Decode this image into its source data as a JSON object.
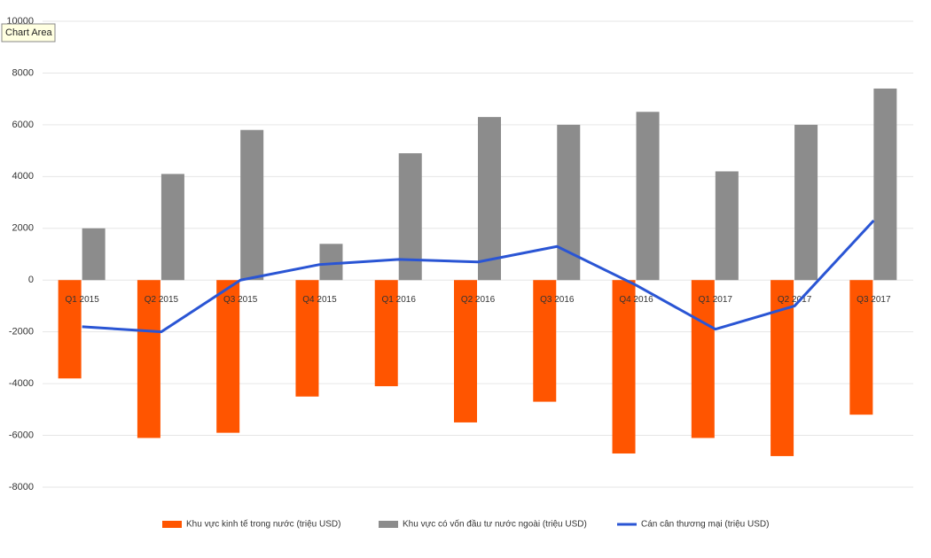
{
  "tooltip": "Chart Area",
  "chart_data": {
    "type": "bar",
    "categories": [
      "Q1 2015",
      "Q2 2015",
      "Q3 2015",
      "Q4 2015",
      "Q1 2016",
      "Q2 2016",
      "Q3 2016",
      "Q4 2016",
      "Q1 2017",
      "Q2 2017",
      "Q3 2017"
    ],
    "series": [
      {
        "name": "Khu vực kinh tế trong nước (triệu USD)",
        "color": "#ff5500",
        "type": "bar",
        "values": [
          -3800,
          -6100,
          -5900,
          -4500,
          -4100,
          -5500,
          -4700,
          -6700,
          -6100,
          -6800,
          -5200
        ]
      },
      {
        "name": "Khu vực có vốn đầu tư nước ngoài (triệu USD)",
        "color": "#8c8c8c",
        "type": "bar",
        "values": [
          2000,
          4100,
          5800,
          1400,
          4900,
          6300,
          6000,
          6500,
          4200,
          6000,
          7400
        ]
      },
      {
        "name": "Cán cân thương mại (triệu USD)",
        "color": "#2a55d4",
        "type": "line",
        "values": [
          -1800,
          -2000,
          0,
          600,
          800,
          700,
          1300,
          -200,
          -1900,
          -1000,
          2300
        ]
      }
    ],
    "ylim": [
      -8000,
      10000
    ],
    "yticks": [
      -8000,
      -6000,
      -4000,
      -2000,
      0,
      2000,
      4000,
      6000,
      8000,
      10000
    ],
    "grid": true,
    "legend": "bottom"
  }
}
